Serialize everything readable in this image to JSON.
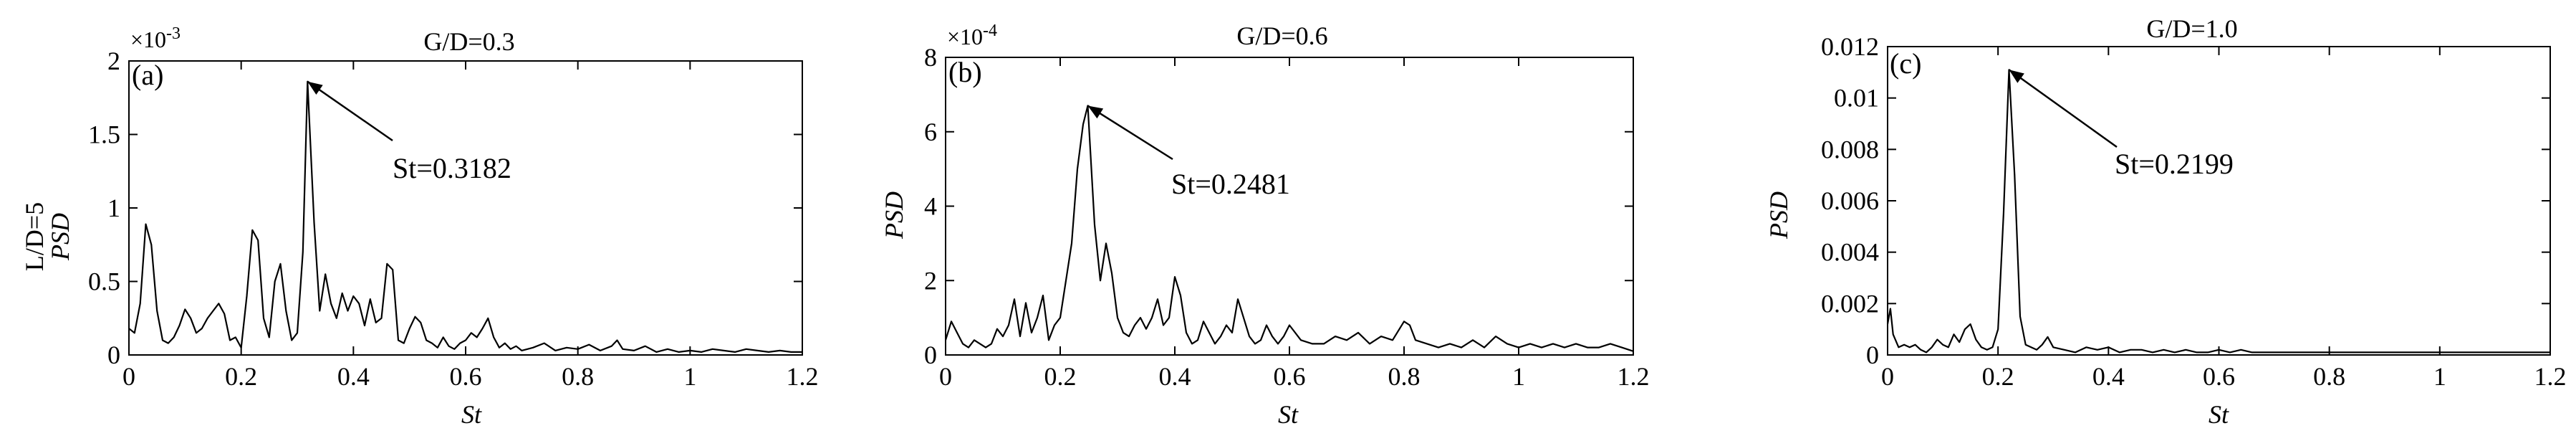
{
  "figure": {
    "panels": [
      {
        "label": "(a)",
        "title": "G/D=0.3",
        "exponent": "×10",
        "exponent_power": "-3",
        "ylabel_prefix": "L/D=5",
        "ylabel": "PSD",
        "xlabel": "St",
        "annotation": "St=0.3182"
      },
      {
        "label": "(b)",
        "title": "G/D=0.6",
        "exponent": "×10",
        "exponent_power": "-4",
        "ylabel_prefix": "",
        "ylabel": "PSD",
        "xlabel": "St",
        "annotation": "St=0.2481"
      },
      {
        "label": "(c)",
        "title": "G/D=1.0",
        "exponent": "",
        "exponent_power": "",
        "ylabel_prefix": "",
        "ylabel": "PSD",
        "xlabel": "St",
        "annotation": "St=0.2199"
      }
    ]
  },
  "chart_data": [
    {
      "type": "line",
      "title": "G/D=0.3",
      "xlabel": "St",
      "ylabel": "PSD",
      "ylabel_prefix": "L/D=5",
      "multiplier": "×10^-3",
      "xlim": [
        0,
        1.2
      ],
      "ylim": [
        0,
        2
      ],
      "xticks": [
        "0",
        "0.2",
        "0.4",
        "0.6",
        "0.8",
        "1",
        "1.2"
      ],
      "yticks": [
        "0",
        "0.5",
        "1",
        "1.5",
        "2"
      ],
      "annotation": {
        "text": "St=0.3182",
        "x": 0.3182,
        "y": 1.86
      },
      "x": [
        0,
        0.01,
        0.02,
        0.03,
        0.04,
        0.05,
        0.06,
        0.07,
        0.08,
        0.09,
        0.1,
        0.11,
        0.12,
        0.13,
        0.14,
        0.15,
        0.16,
        0.17,
        0.18,
        0.19,
        0.2,
        0.21,
        0.22,
        0.23,
        0.24,
        0.25,
        0.26,
        0.27,
        0.28,
        0.29,
        0.3,
        0.31,
        0.3182,
        0.33,
        0.34,
        0.35,
        0.36,
        0.37,
        0.38,
        0.39,
        0.4,
        0.41,
        0.42,
        0.43,
        0.44,
        0.45,
        0.46,
        0.47,
        0.48,
        0.49,
        0.5,
        0.51,
        0.52,
        0.53,
        0.54,
        0.55,
        0.56,
        0.57,
        0.58,
        0.59,
        0.6,
        0.61,
        0.62,
        0.63,
        0.64,
        0.65,
        0.66,
        0.67,
        0.68,
        0.69,
        0.7,
        0.72,
        0.74,
        0.76,
        0.78,
        0.8,
        0.82,
        0.84,
        0.86,
        0.87,
        0.88,
        0.9,
        0.92,
        0.94,
        0.96,
        0.98,
        1.0,
        1.02,
        1.04,
        1.06,
        1.08,
        1.1,
        1.12,
        1.14,
        1.16,
        1.18,
        1.2
      ],
      "y": [
        0.18,
        0.15,
        0.35,
        0.89,
        0.75,
        0.3,
        0.1,
        0.08,
        0.12,
        0.2,
        0.31,
        0.25,
        0.15,
        0.18,
        0.25,
        0.3,
        0.35,
        0.28,
        0.1,
        0.12,
        0.05,
        0.4,
        0.85,
        0.78,
        0.25,
        0.12,
        0.5,
        0.62,
        0.3,
        0.1,
        0.15,
        0.7,
        1.86,
        0.9,
        0.3,
        0.55,
        0.35,
        0.25,
        0.42,
        0.3,
        0.4,
        0.35,
        0.2,
        0.38,
        0.22,
        0.25,
        0.62,
        0.58,
        0.1,
        0.08,
        0.18,
        0.26,
        0.22,
        0.1,
        0.08,
        0.05,
        0.12,
        0.06,
        0.04,
        0.08,
        0.1,
        0.15,
        0.12,
        0.18,
        0.25,
        0.12,
        0.05,
        0.08,
        0.04,
        0.06,
        0.03,
        0.05,
        0.08,
        0.03,
        0.05,
        0.04,
        0.07,
        0.03,
        0.06,
        0.1,
        0.04,
        0.03,
        0.06,
        0.02,
        0.04,
        0.02,
        0.03,
        0.02,
        0.04,
        0.03,
        0.02,
        0.04,
        0.03,
        0.02,
        0.03,
        0.02,
        0.02
      ]
    },
    {
      "type": "line",
      "title": "G/D=0.6",
      "xlabel": "St",
      "ylabel": "PSD",
      "multiplier": "×10^-4",
      "xlim": [
        0,
        1.2
      ],
      "ylim": [
        0,
        8
      ],
      "xticks": [
        "0",
        "0.2",
        "0.4",
        "0.6",
        "0.8",
        "1",
        "1.2"
      ],
      "yticks": [
        "0",
        "2",
        "4",
        "6",
        "8"
      ],
      "annotation": {
        "text": "St=0.2481",
        "x": 0.2481,
        "y": 6.7
      },
      "x": [
        0,
        0.01,
        0.02,
        0.03,
        0.04,
        0.05,
        0.06,
        0.07,
        0.08,
        0.09,
        0.1,
        0.11,
        0.12,
        0.13,
        0.14,
        0.15,
        0.16,
        0.17,
        0.18,
        0.19,
        0.2,
        0.21,
        0.22,
        0.23,
        0.24,
        0.2481,
        0.26,
        0.27,
        0.28,
        0.29,
        0.3,
        0.31,
        0.32,
        0.33,
        0.34,
        0.35,
        0.36,
        0.37,
        0.38,
        0.39,
        0.4,
        0.41,
        0.42,
        0.43,
        0.44,
        0.45,
        0.46,
        0.47,
        0.48,
        0.49,
        0.5,
        0.51,
        0.52,
        0.53,
        0.54,
        0.55,
        0.56,
        0.57,
        0.58,
        0.59,
        0.6,
        0.62,
        0.64,
        0.66,
        0.68,
        0.7,
        0.72,
        0.74,
        0.76,
        0.78,
        0.8,
        0.81,
        0.82,
        0.84,
        0.86,
        0.88,
        0.9,
        0.92,
        0.94,
        0.96,
        0.98,
        1.0,
        1.02,
        1.04,
        1.06,
        1.08,
        1.1,
        1.12,
        1.14,
        1.16,
        1.18,
        1.2
      ],
      "y": [
        0.4,
        0.9,
        0.6,
        0.3,
        0.2,
        0.4,
        0.3,
        0.2,
        0.3,
        0.7,
        0.5,
        0.8,
        1.5,
        0.5,
        1.4,
        0.6,
        1.0,
        1.6,
        0.4,
        0.8,
        1.0,
        2.0,
        3.0,
        5.0,
        6.2,
        6.7,
        3.5,
        2.0,
        3.0,
        2.2,
        1.0,
        0.6,
        0.5,
        0.8,
        1.0,
        0.7,
        1.0,
        1.5,
        0.8,
        1.0,
        2.1,
        1.6,
        0.6,
        0.3,
        0.4,
        0.9,
        0.6,
        0.3,
        0.5,
        0.8,
        0.6,
        1.5,
        1.0,
        0.5,
        0.3,
        0.4,
        0.8,
        0.5,
        0.3,
        0.5,
        0.8,
        0.4,
        0.3,
        0.3,
        0.5,
        0.4,
        0.6,
        0.3,
        0.5,
        0.4,
        0.9,
        0.8,
        0.4,
        0.3,
        0.2,
        0.3,
        0.2,
        0.4,
        0.2,
        0.5,
        0.3,
        0.2,
        0.3,
        0.2,
        0.3,
        0.2,
        0.3,
        0.2,
        0.2,
        0.3,
        0.2,
        0.1
      ]
    },
    {
      "type": "line",
      "title": "G/D=1.0",
      "xlabel": "St",
      "ylabel": "PSD",
      "xlim": [
        0,
        1.2
      ],
      "ylim": [
        0,
        0.012
      ],
      "xticks": [
        "0",
        "0.2",
        "0.4",
        "0.6",
        "0.8",
        "1",
        "1.2"
      ],
      "yticks": [
        "0",
        "0.002",
        "0.004",
        "0.006",
        "0.008",
        "0.01",
        "0.012"
      ],
      "annotation": {
        "text": "St=0.2199",
        "x": 0.2199,
        "y": 0.0111
      },
      "x": [
        0,
        0.005,
        0.01,
        0.02,
        0.03,
        0.04,
        0.05,
        0.06,
        0.07,
        0.08,
        0.09,
        0.1,
        0.11,
        0.12,
        0.13,
        0.14,
        0.15,
        0.16,
        0.17,
        0.18,
        0.19,
        0.2,
        0.21,
        0.2199,
        0.23,
        0.24,
        0.25,
        0.26,
        0.27,
        0.28,
        0.29,
        0.3,
        0.32,
        0.34,
        0.36,
        0.38,
        0.4,
        0.42,
        0.44,
        0.46,
        0.48,
        0.5,
        0.52,
        0.54,
        0.56,
        0.58,
        0.6,
        0.62,
        0.64,
        0.66,
        0.68,
        0.7,
        0.75,
        0.8,
        0.85,
        0.9,
        0.95,
        1.0,
        1.05,
        1.1,
        1.15,
        1.2
      ],
      "y": [
        0.0012,
        0.0018,
        0.0008,
        0.0003,
        0.0004,
        0.0003,
        0.0004,
        0.0002,
        0.0001,
        0.0003,
        0.0006,
        0.0004,
        0.0003,
        0.0008,
        0.0005,
        0.001,
        0.0012,
        0.0006,
        0.0003,
        0.0002,
        0.0003,
        0.001,
        0.0055,
        0.0111,
        0.007,
        0.0015,
        0.0004,
        0.0003,
        0.0002,
        0.0004,
        0.0007,
        0.0003,
        0.0002,
        0.0001,
        0.0003,
        0.0002,
        0.0003,
        0.0001,
        0.0002,
        0.0002,
        0.0001,
        0.0002,
        0.0001,
        0.0002,
        0.0001,
        0.0001,
        0.0002,
        0.0001,
        0.0002,
        0.0001,
        0.0001,
        0.0001,
        0.0001,
        0.0001,
        0.0001,
        0.0001,
        0.0001,
        0.0001,
        0.0001,
        0.0001,
        0.0001,
        0.0001
      ]
    }
  ]
}
